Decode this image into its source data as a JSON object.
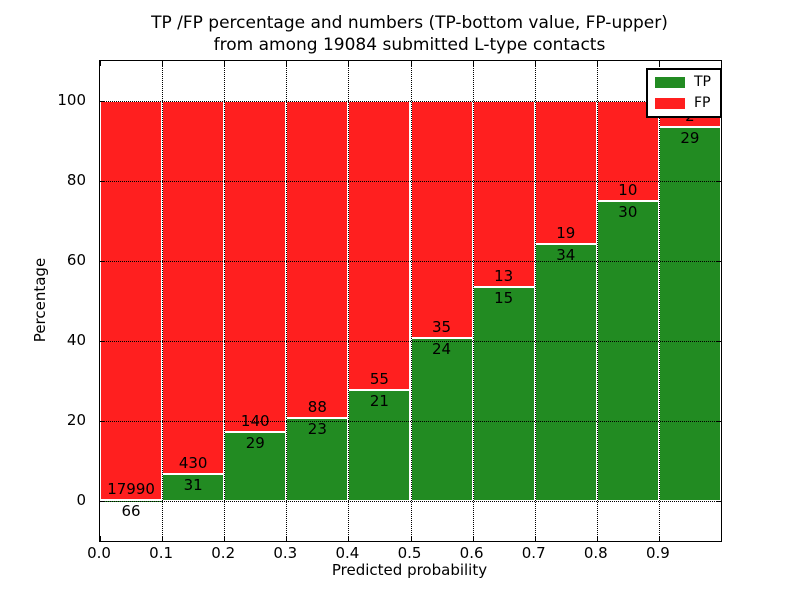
{
  "colors": {
    "background": "#ffffff",
    "text": "#000000",
    "tp_green": "#228B22",
    "fp_red": "#FF1F1F",
    "bar_edge": "#ffffff",
    "grid": "#000000"
  },
  "chart_data": {
    "type": "bar",
    "stacked": true,
    "normalized_to": 100,
    "title_line1": "TP /FP percentage and numbers (TP-bottom value, FP-upper)",
    "title_line2": "from among 19084 submitted L-type contacts",
    "xlabel": "Predicted probability",
    "ylabel": "Percentage",
    "x_tick_labels": [
      "0.0",
      "0.1",
      "0.2",
      "0.3",
      "0.4",
      "0.5",
      "0.6",
      "0.7",
      "0.8",
      "0.9"
    ],
    "y_tick_values": [
      0,
      20,
      40,
      60,
      80,
      100
    ],
    "y_tick_labels": [
      "0",
      "20",
      "40",
      "60",
      "80",
      "100"
    ],
    "xlim": [
      0.0,
      1.0
    ],
    "ylim": [
      -10,
      110
    ],
    "bin_width": 0.1,
    "grid": "dotted",
    "legend_position": "upper-right",
    "legend": [
      {
        "label": "TP",
        "color": "#228B22"
      },
      {
        "label": "FP",
        "color": "#FF1F1F"
      }
    ],
    "bars": [
      {
        "bin_start": 0.0,
        "tp": 66,
        "fp": 17990
      },
      {
        "bin_start": 0.1,
        "tp": 31,
        "fp": 430
      },
      {
        "bin_start": 0.2,
        "tp": 29,
        "fp": 140
      },
      {
        "bin_start": 0.3,
        "tp": 23,
        "fp": 88
      },
      {
        "bin_start": 0.4,
        "tp": 21,
        "fp": 55
      },
      {
        "bin_start": 0.5,
        "tp": 24,
        "fp": 35
      },
      {
        "bin_start": 0.6,
        "tp": 15,
        "fp": 13
      },
      {
        "bin_start": 0.7,
        "tp": 34,
        "fp": 19
      },
      {
        "bin_start": 0.8,
        "tp": 30,
        "fp": 10
      },
      {
        "bin_start": 0.9,
        "tp": 29,
        "fp": 2
      }
    ]
  }
}
